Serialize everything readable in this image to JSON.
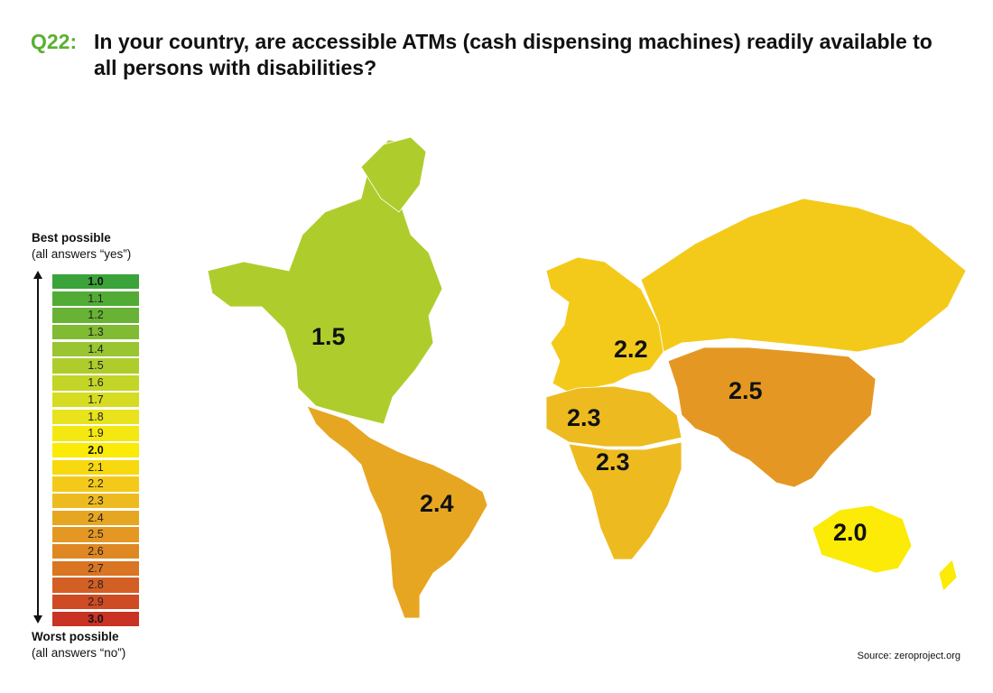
{
  "title": {
    "number": "Q22:",
    "text": "In your country, are accessible ATMs (cash dispensing machines) readily available to all persons with disabilities?"
  },
  "legend": {
    "best_title": "Best possible",
    "best_sub": "(all answers “yes”)",
    "worst_title": "Worst possible",
    "worst_sub": "(all answers “no”)",
    "scale": [
      {
        "label": "1.0",
        "color": "#3aa339",
        "bold": true
      },
      {
        "label": "1.1",
        "color": "#52ab35",
        "bold": false
      },
      {
        "label": "1.2",
        "color": "#68b336",
        "bold": false
      },
      {
        "label": "1.3",
        "color": "#80bb33",
        "bold": false
      },
      {
        "label": "1.4",
        "color": "#98c530",
        "bold": false
      },
      {
        "label": "1.5",
        "color": "#aecd2c",
        "bold": false
      },
      {
        "label": "1.6",
        "color": "#c3d526",
        "bold": false
      },
      {
        "label": "1.7",
        "color": "#d6dc22",
        "bold": false
      },
      {
        "label": "1.8",
        "color": "#e8e31c",
        "bold": false
      },
      {
        "label": "1.9",
        "color": "#f5e812",
        "bold": false
      },
      {
        "label": "2.0",
        "color": "#fbeb07",
        "bold": true
      },
      {
        "label": "2.1",
        "color": "#f8d80f",
        "bold": false
      },
      {
        "label": "2.2",
        "color": "#f3ca1a",
        "bold": false
      },
      {
        "label": "2.3",
        "color": "#edbb20",
        "bold": false
      },
      {
        "label": "2.4",
        "color": "#e7a622",
        "bold": false
      },
      {
        "label": "2.5",
        "color": "#e49823",
        "bold": false
      },
      {
        "label": "2.6",
        "color": "#df8823",
        "bold": false
      },
      {
        "label": "2.7",
        "color": "#d97523",
        "bold": false
      },
      {
        "label": "2.8",
        "color": "#d45f24",
        "bold": false
      },
      {
        "label": "2.9",
        "color": "#cf4b24",
        "bold": false
      },
      {
        "label": "3.0",
        "color": "#c93324",
        "bold": true
      }
    ]
  },
  "regions": {
    "north_america": {
      "value": "1.5",
      "color": "#aecd2c"
    },
    "latin_america": {
      "value": "2.4",
      "color": "#e7a622"
    },
    "europe": {
      "value": "2.2",
      "color": "#f3ca1a"
    },
    "north_africa": {
      "value": "2.3",
      "color": "#edbb20"
    },
    "sub_saharan_africa": {
      "value": "2.3",
      "color": "#edbb20"
    },
    "asia": {
      "value": "2.5",
      "color": "#e49823"
    },
    "oceania": {
      "value": "2.0",
      "color": "#fbeb07"
    }
  },
  "source": "Source: zeroproject.org"
}
